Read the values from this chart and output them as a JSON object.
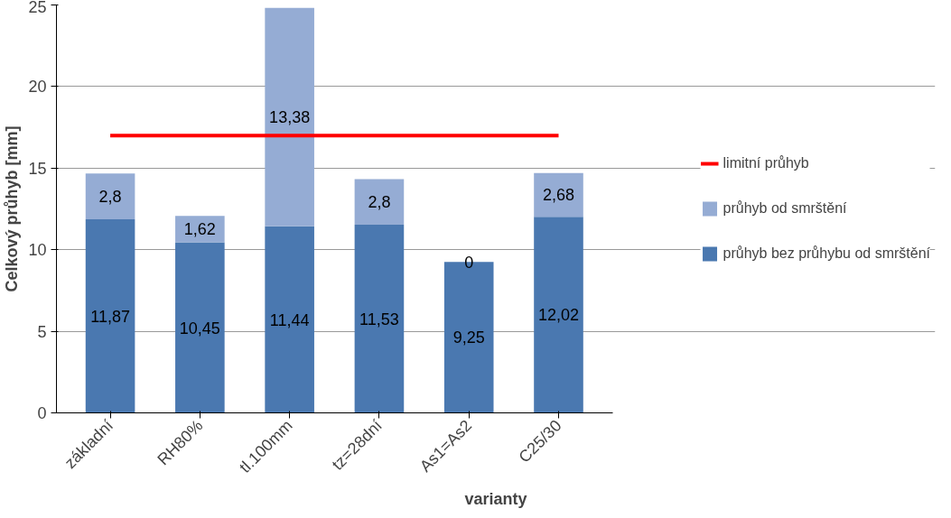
{
  "chart_data": {
    "type": "bar",
    "stacked": true,
    "xlabel": "varianty",
    "ylabel": "Celkový průhyb [mm]",
    "categories": [
      "základní",
      "RH80%",
      "tl.100mm",
      "tz=28dní",
      "As1=As2",
      "C25/30"
    ],
    "series": [
      {
        "name": "průhyb bez průhybu od smrštění",
        "color": "#4a78b0",
        "values": [
          11.87,
          10.45,
          11.44,
          11.53,
          9.25,
          12.02
        ],
        "value_labels": [
          "11,87",
          "10,45",
          "11,44",
          "11,53",
          "9,25",
          "12,02"
        ]
      },
      {
        "name": "průhyb od smrštění",
        "color": "#95acd4",
        "values": [
          2.8,
          1.62,
          13.38,
          2.8,
          0,
          2.68
        ],
        "value_labels": [
          "2,8",
          "1,62",
          "13,38",
          "2,8",
          "0",
          "2,68"
        ]
      },
      {
        "name": "limitní průhyb",
        "type": "line",
        "color": "#ff0000",
        "values": [
          17,
          17,
          17,
          17,
          17,
          17
        ]
      }
    ],
    "ylim": [
      0,
      25
    ],
    "yticks": [
      0,
      5,
      10,
      15,
      20,
      25
    ],
    "grid": "y",
    "legend": "right"
  }
}
